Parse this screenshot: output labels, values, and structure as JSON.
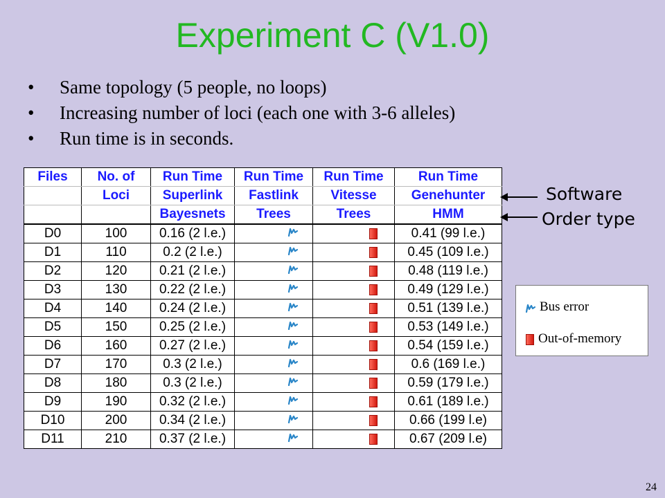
{
  "slide": {
    "title": "Experiment C (V1.0)",
    "bullets": [
      "Same topology (5 people, no loops)",
      "Increasing number of loci (each one with 3-6 alleles)",
      "Run time is in seconds."
    ],
    "page_number": "24"
  },
  "table": {
    "header": {
      "row1": [
        "Files",
        "No. of",
        "Run Time",
        "Run Time",
        "Run Time",
        "Run Time"
      ],
      "row2": [
        "",
        "Loci",
        "Superlink",
        "Fastlink",
        "Vitesse",
        "Genehunter"
      ],
      "row3": [
        "",
        "",
        "Bayesnets",
        "Trees",
        "Trees",
        "HMM"
      ]
    },
    "rows": [
      {
        "file": "D0",
        "loci": "100",
        "superlink": "0.16 (2 l.e.)",
        "fastlink": "bus-error-icon",
        "vitesse": "out-of-memory-icon",
        "genehunter": "0.41 (99 l.e.)"
      },
      {
        "file": "D1",
        "loci": "110",
        "superlink": "0.2 (2 l.e.)",
        "fastlink": "bus-error-icon",
        "vitesse": "out-of-memory-icon",
        "genehunter": "0.45 (109 l.e.)"
      },
      {
        "file": "D2",
        "loci": "120",
        "superlink": "0.21 (2 l.e.)",
        "fastlink": "bus-error-icon",
        "vitesse": "out-of-memory-icon",
        "genehunter": "0.48 (119 l.e.)"
      },
      {
        "file": "D3",
        "loci": "130",
        "superlink": "0.22 (2 l.e.)",
        "fastlink": "bus-error-icon",
        "vitesse": "out-of-memory-icon",
        "genehunter": "0.49 (129 l.e.)"
      },
      {
        "file": "D4",
        "loci": "140",
        "superlink": "0.24 (2 l.e.)",
        "fastlink": "bus-error-icon",
        "vitesse": "out-of-memory-icon",
        "genehunter": "0.51 (139 l.e.)"
      },
      {
        "file": "D5",
        "loci": "150",
        "superlink": "0.25 (2 l.e.)",
        "fastlink": "bus-error-icon",
        "vitesse": "out-of-memory-icon",
        "genehunter": "0.53 (149 l.e.)"
      },
      {
        "file": "D6",
        "loci": "160",
        "superlink": "0.27 (2 l.e.)",
        "fastlink": "bus-error-icon",
        "vitesse": "out-of-memory-icon",
        "genehunter": "0.54 (159 l.e.)"
      },
      {
        "file": "D7",
        "loci": "170",
        "superlink": "0.3 (2 l.e.)",
        "fastlink": "bus-error-icon",
        "vitesse": "out-of-memory-icon",
        "genehunter": "0.6 (169 l.e.)"
      },
      {
        "file": "D8",
        "loci": "180",
        "superlink": "0.3 (2 l.e.)",
        "fastlink": "bus-error-icon",
        "vitesse": "out-of-memory-icon",
        "genehunter": "0.59 (179 l.e.)"
      },
      {
        "file": "D9",
        "loci": "190",
        "superlink": "0.32 (2 l.e.)",
        "fastlink": "bus-error-icon",
        "vitesse": "out-of-memory-icon",
        "genehunter": "0.61 (189 l.e.)"
      },
      {
        "file": "D10",
        "loci": "200",
        "superlink": "0.34 (2 l.e.)",
        "fastlink": "bus-error-icon",
        "vitesse": "out-of-memory-icon",
        "genehunter": "0.66 (199 l.e)"
      },
      {
        "file": "D11",
        "loci": "210",
        "superlink": "0.37 (2 l.e.)",
        "fastlink": "bus-error-icon",
        "vitesse": "out-of-memory-icon",
        "genehunter": "0.67 (209 l.e)"
      }
    ]
  },
  "annotations": {
    "software": "Software",
    "order_type": "Order type"
  },
  "legend": {
    "bus_error": "Bus error",
    "out_of_memory": "Out-of-memory"
  },
  "colors": {
    "background": "#cdc7e4",
    "title": "#22b822",
    "header_text": "#1a1aff"
  }
}
